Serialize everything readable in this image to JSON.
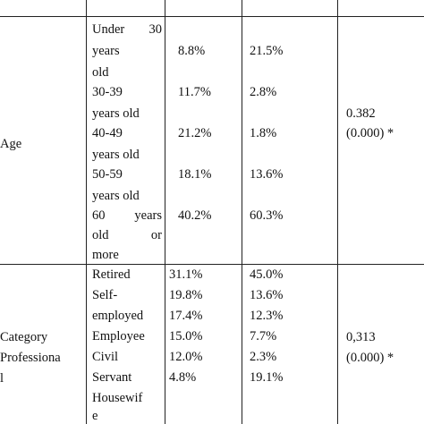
{
  "table": {
    "age": {
      "label": "Age",
      "rows": [
        {
          "l1a": "Under",
          "l1b": "30",
          "l2": "years",
          "l3": "old",
          "v1": "8.8%",
          "v2": "21.5%"
        },
        {
          "l1": "30-39",
          "l2": "years old",
          "v1": "11.7%",
          "v2": "2.8%"
        },
        {
          "l1": "40-49",
          "l2": "years old",
          "v1": "21.2%",
          "v2": "1.8%"
        },
        {
          "l1": "50-59",
          "l2": "years old",
          "v1": "18.1%",
          "v2": "13.6%"
        },
        {
          "l1a": "60",
          "l1b": "years",
          "l2a": "old",
          "l2b": "or",
          "l3": "more",
          "v1": "40.2%",
          "v2": "60.3%"
        }
      ],
      "stat": "0.382",
      "pvalue": "(0.000) *"
    },
    "prof": {
      "label_l1": "Category",
      "label_l2": "Professiona",
      "label_l3": "l",
      "rows": [
        {
          "l1": "Retired",
          "v1": "31.1%",
          "v2": "45.0%"
        },
        {
          "l1": "Self-",
          "v1": "19.8%",
          "v2": "13.6%"
        },
        {
          "l1": "employed",
          "v1": "17.4%",
          "v2": "12.3%"
        },
        {
          "l1": "Employee",
          "v1": "15.0%",
          "v2": "7.7%"
        },
        {
          "l1": "Civil",
          "v1": "12.0%",
          "v2": "2.3%"
        },
        {
          "l1": "Servant",
          "v1": "4.8%",
          "v2": "19.1%"
        },
        {
          "l1": "Housewif"
        },
        {
          "l1": "e"
        }
      ],
      "stat": "0,313",
      "pvalue": "(0.000) *"
    }
  }
}
